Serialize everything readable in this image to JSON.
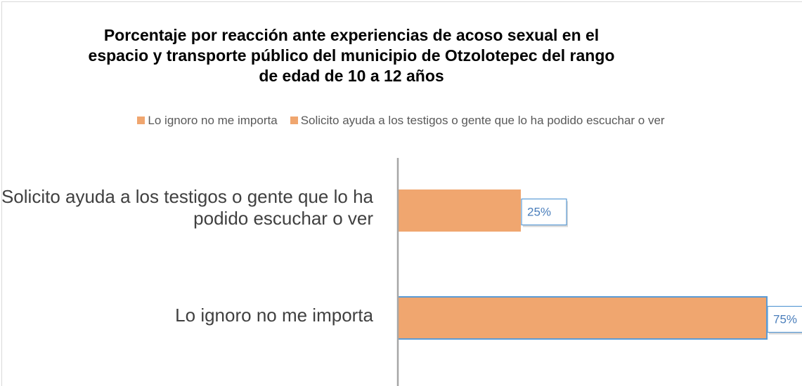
{
  "chart_data": {
    "type": "hbar",
    "title": "Porcentaje por reacción ante experiencias de acoso sexual en el espacio y transporte público del municipio de Otzolotepec del rango  de edad de 10 a 12 años",
    "categories": [
      "Lo ignoro no me importa",
      "Solicito ayuda a los testigos o gente que lo ha podido escuchar o ver"
    ],
    "values": [
      75,
      25
    ],
    "value_labels": [
      "75%",
      "25%"
    ],
    "color": "#f0a66f",
    "xlim": [
      0,
      80
    ]
  }
}
